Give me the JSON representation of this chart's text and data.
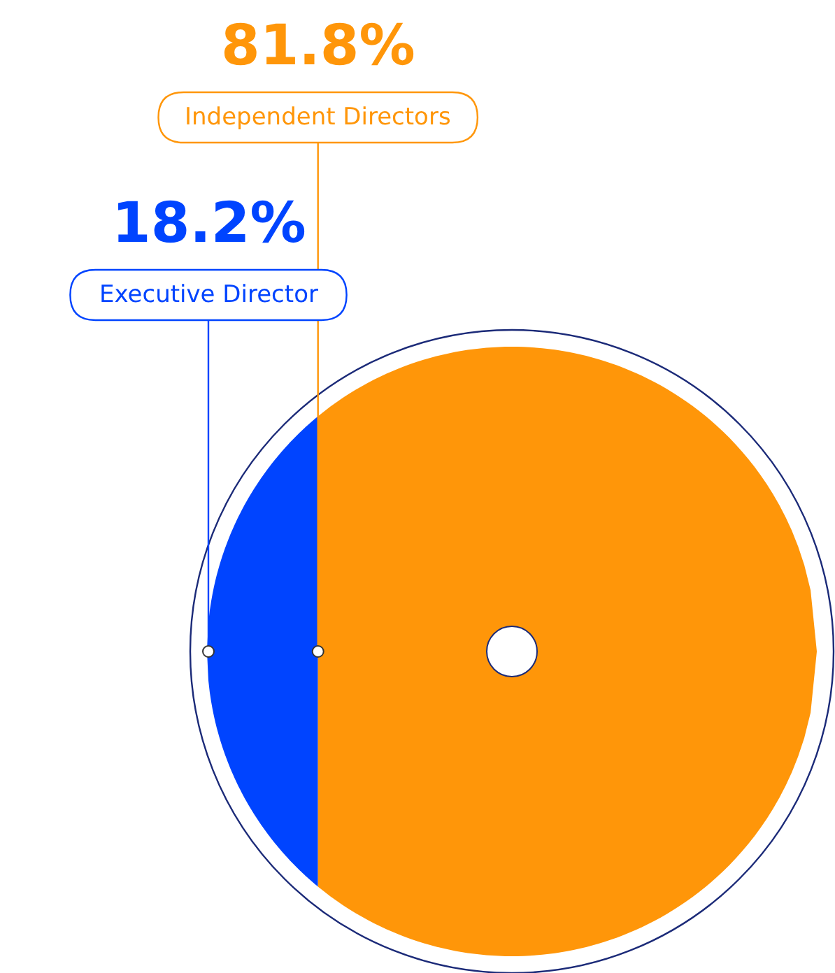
{
  "chart_data": {
    "type": "other",
    "categories": [
      "Executive Director",
      "Independent Directors"
    ],
    "values": [
      18.2,
      81.8
    ],
    "value_labels": [
      "18.2%",
      "81.8%"
    ],
    "colors": [
      "#0044ff",
      "#ff9609"
    ]
  }
}
